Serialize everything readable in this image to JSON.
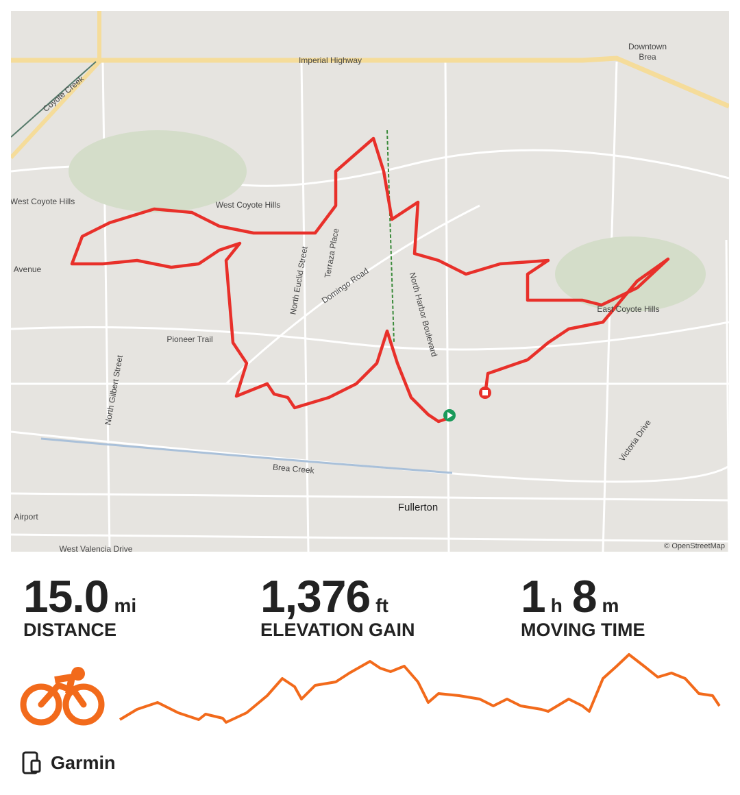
{
  "map": {
    "labels": [
      "Imperial Highway",
      "Coyote Creek",
      "Downtown",
      "Brea",
      "West Coyote Hills",
      "West Coyote Hills",
      "Avenue",
      "North Euclid Street",
      "Terraza Place",
      "Domingo Road",
      "North Harbor Boulevard",
      "East Coyote Hills",
      "Pioneer Trail",
      "North Gilbert Street",
      "Brea Creek",
      "Fullerton",
      "Victoria Drive",
      "West Valencia Drive",
      "Airport"
    ],
    "attribution": "© OpenStreetMap"
  },
  "stats": [
    {
      "value": "15.0",
      "unit": "mi",
      "label": "DISTANCE"
    },
    {
      "value": "1,376",
      "unit": "ft",
      "label": "ELEVATION GAIN"
    },
    {
      "hours": "1",
      "hours_unit": "h",
      "minutes": "8",
      "minutes_unit": "m",
      "label": "MOVING TIME"
    }
  ],
  "device": "Garmin"
}
